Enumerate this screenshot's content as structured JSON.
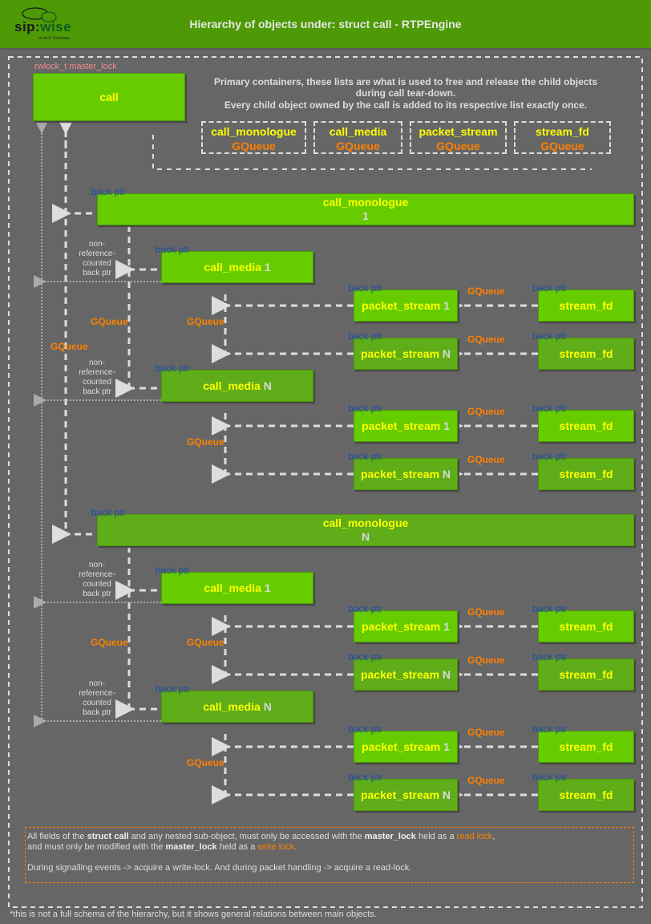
{
  "header": {
    "title": "Hierarchy of objects under: struct call - RTPEngine",
    "logo_text": "sip:wise",
    "logo_sub": "an ALE Company"
  },
  "call": {
    "lock_label": "rwlock_t master_lock",
    "label": "call"
  },
  "primary_note": [
    "Primary containers, these lists are what is used to free and release the child objects",
    "during call tear-down.",
    "Every child object owned by the call is added to its respective list exactly once."
  ],
  "queues": [
    {
      "name": "call_monologue",
      "type": "GQueue"
    },
    {
      "name": "call_media",
      "type": "GQueue"
    },
    {
      "name": "packet_stream",
      "type": "GQueue"
    },
    {
      "name": "stream_fd",
      "type": "GQueue"
    }
  ],
  "labels": {
    "back_ptr": "back ptr",
    "gqueue": "GQueue",
    "nonref": [
      "non-",
      "reference-",
      "counted",
      "back ptr"
    ],
    "stream_fd": "stream_fd"
  },
  "groups": [
    {
      "monologue": {
        "name": "call_monologue",
        "index": "1"
      },
      "medias": [
        {
          "name": "call_media",
          "index": "1",
          "streams": [
            {
              "name": "packet_stream",
              "index": "1"
            },
            {
              "name": "packet_stream",
              "index": "N"
            }
          ]
        },
        {
          "name": "call_media",
          "index": "N",
          "streams": [
            {
              "name": "packet_stream",
              "index": "1"
            },
            {
              "name": "packet_stream",
              "index": "N"
            }
          ]
        }
      ]
    },
    {
      "monologue": {
        "name": "call_monologue",
        "index": "N"
      },
      "medias": [
        {
          "name": "call_media",
          "index": "1",
          "streams": [
            {
              "name": "packet_stream",
              "index": "1"
            },
            {
              "name": "packet_stream",
              "index": "N"
            }
          ]
        },
        {
          "name": "call_media",
          "index": "N",
          "streams": [
            {
              "name": "packet_stream",
              "index": "1"
            },
            {
              "name": "packet_stream",
              "index": "N"
            }
          ]
        }
      ]
    }
  ],
  "note": {
    "l1": [
      "All fields of the ",
      "struct call",
      " and any nested sub-object, must only be accessed with the ",
      "master_lock",
      " held as a ",
      "read lock",
      ","
    ],
    "l2": [
      "and must only be modified with the ",
      "master_lock",
      " held as a ",
      "write lock",
      "."
    ],
    "l3": "During signalling events -> acquire a write-lock. And during packet handling -> acquire a read-lock."
  },
  "footnote": "*this is not a full schema of the hierarchy, but it shows general relations between main objects.",
  "colors": {
    "header": "#4e9a06",
    "box": "#66cc00",
    "box_dark": "#5fad18",
    "name": "#ffff00",
    "gqueue": "#ff8000",
    "back_ptr": "#1a4fa0",
    "background": "#666666"
  }
}
